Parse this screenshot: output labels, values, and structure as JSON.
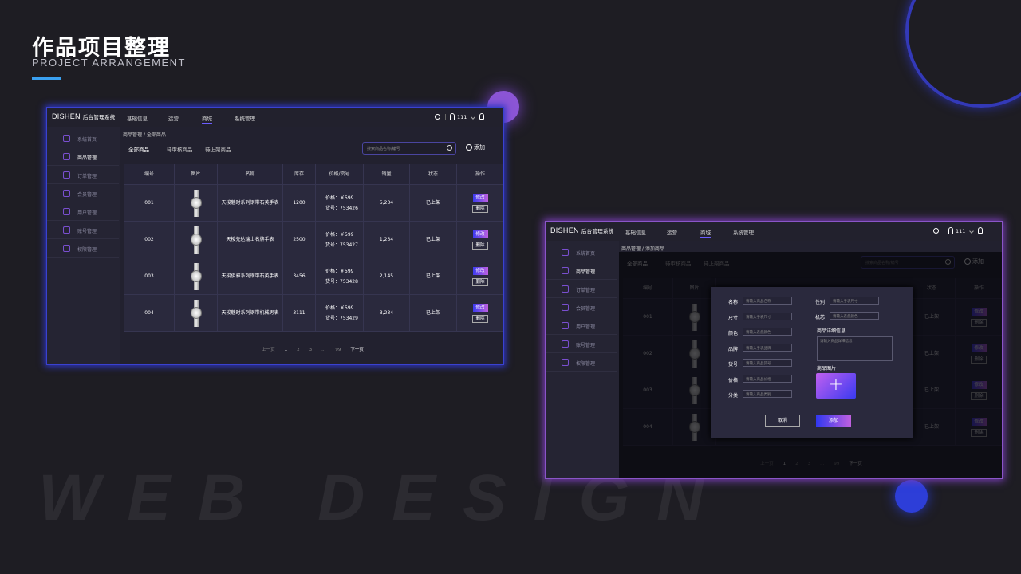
{
  "slide": {
    "title": "作品项目整理",
    "subtitle": "PROJECT ARRANGEMENT",
    "watermark": "WEB DESIGN"
  },
  "colors": {
    "accent": "#6b5cff",
    "edit_gradient": [
      "#3c3cf0",
      "#c060e0"
    ],
    "title_bar": "#3aa0f0"
  },
  "app": {
    "logo": "DISHEN",
    "system_name": "后台管理系统",
    "nav": [
      {
        "label": "基础信息"
      },
      {
        "label": "运营"
      },
      {
        "label": "商城",
        "active": true
      },
      {
        "label": "系统管理"
      }
    ],
    "user": "111",
    "icons": [
      "search-icon",
      "user-icon",
      "chevron-down-icon",
      "bell-icon"
    ],
    "sidebar": [
      {
        "label": "系统首页",
        "icon": "home-icon"
      },
      {
        "label": "商品管理",
        "icon": "bag-icon",
        "active": true
      },
      {
        "label": "订单管理",
        "icon": "order-icon"
      },
      {
        "label": "会员管理",
        "icon": "crown-icon"
      },
      {
        "label": "用户管理",
        "icon": "user-icon"
      },
      {
        "label": "账号管理",
        "icon": "account-icon"
      },
      {
        "label": "权限管理",
        "icon": "shield-icon"
      }
    ],
    "tabs": [
      {
        "label": "全部商品",
        "active": true
      },
      {
        "label": "待审核商品"
      },
      {
        "label": "待上架商品"
      }
    ],
    "search_placeholder": "搜索商品名称/编号",
    "add_label": "添加",
    "columns": [
      "编号",
      "图片",
      "名称",
      "库存",
      "价格/货号",
      "销量",
      "状态",
      "操作"
    ],
    "rows": [
      {
        "id": "001",
        "name": "天梭魅时系列钢带石英手表",
        "stock": "1200",
        "price": "价格：￥599",
        "sku": "货号：753426",
        "sales": "5,234",
        "status": "已上架"
      },
      {
        "id": "002",
        "name": "天梭先达瑞士名牌手表",
        "stock": "2500",
        "price": "价格：￥599",
        "sku": "货号：753427",
        "sales": "1,234",
        "status": "已上架"
      },
      {
        "id": "003",
        "name": "天梭俊雅系列钢带石英手表",
        "stock": "3456",
        "price": "价格：￥599",
        "sku": "货号：753428",
        "sales": "2,145",
        "status": "已上架"
      },
      {
        "id": "004",
        "name": "天梭魅时系列钢带机械男表",
        "stock": "3111",
        "price": "价格：￥599",
        "sku": "货号：753429",
        "sales": "3,234",
        "status": "已上架"
      }
    ],
    "edit_label": "修改",
    "delete_label": "删除",
    "pager": {
      "prev": "上一页",
      "pages": [
        "1",
        "2",
        "3",
        "...",
        "99"
      ],
      "current": "1",
      "next": "下一页"
    }
  },
  "panel_list": {
    "breadcrumb": "商品管理 / 全部商品"
  },
  "panel_add": {
    "breadcrumb": "商品管理 / 添加商品",
    "left_fields": [
      {
        "label": "名称",
        "placeholder": "请输入商品名称"
      },
      {
        "label": "尺寸",
        "placeholder": "请输入手表尺寸"
      },
      {
        "label": "颜色",
        "placeholder": "请输入表盘颜色"
      },
      {
        "label": "品牌",
        "placeholder": "请输入手表品牌"
      },
      {
        "label": "货号",
        "placeholder": "请输入商品货号"
      },
      {
        "label": "价格",
        "placeholder": "请输入商品价格"
      },
      {
        "label": "分类",
        "placeholder": "请输入商品类别"
      }
    ],
    "right_fields": [
      {
        "label": "性别",
        "placeholder": "请输入手表尺寸"
      },
      {
        "label": "机芯",
        "placeholder": "请输入表盘颜色"
      }
    ],
    "detail_label": "商品详细信息",
    "detail_placeholder": "请输入商品详细信息",
    "image_label": "商品图片",
    "cancel": "取消",
    "submit": "添加"
  }
}
